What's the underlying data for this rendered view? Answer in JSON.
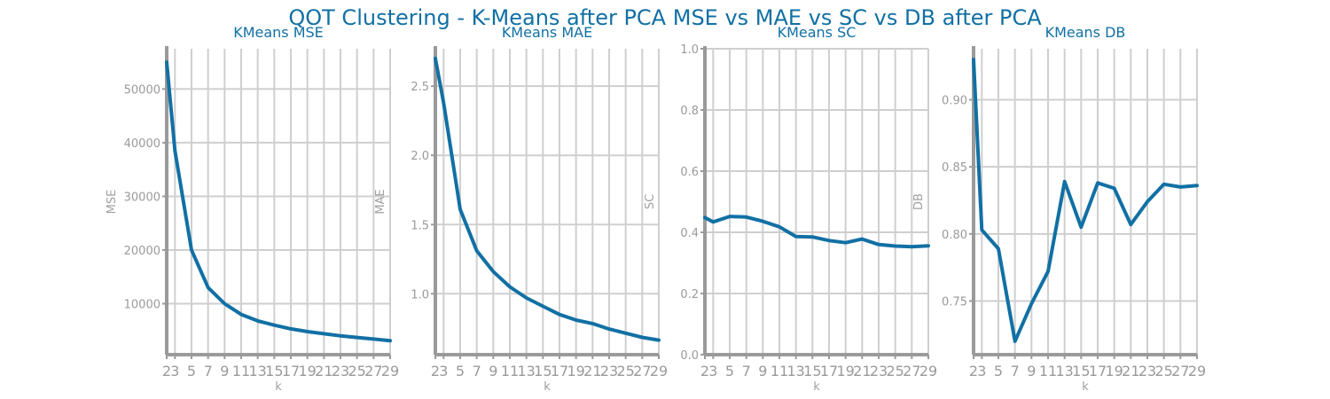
{
  "title": "QOT Clustering - K-Means after PCA MSE vs MAE vs SC vs DB after PCA",
  "colors": {
    "line": "#1170a4",
    "title": "#1170a4",
    "axis": "#9a9a9a",
    "grid": "#cfcfcf"
  },
  "chart_data": [
    {
      "type": "line",
      "title": "KMeans MSE",
      "xlabel": "k",
      "ylabel": "MSE",
      "x": [
        2,
        3,
        5,
        7,
        9,
        11,
        13,
        15,
        17,
        19,
        21,
        23,
        25,
        27,
        29
      ],
      "xticks": [
        2,
        3,
        5,
        7,
        9,
        11,
        13,
        15,
        17,
        19,
        21,
        23,
        25,
        27,
        29
      ],
      "yticks": [
        10000,
        20000,
        30000,
        40000,
        50000
      ],
      "xlim": [
        2,
        29
      ],
      "ylim": [
        500,
        57500
      ],
      "grid": true,
      "series": [
        {
          "values": [
            55000,
            38500,
            20000,
            13000,
            10000,
            8000,
            6800,
            6000,
            5300,
            4800,
            4400,
            4000,
            3700,
            3400,
            3100
          ]
        }
      ]
    },
    {
      "type": "line",
      "title": "KMeans MAE",
      "xlabel": "k",
      "ylabel": "MAE",
      "x": [
        2,
        3,
        5,
        7,
        9,
        11,
        13,
        15,
        17,
        19,
        21,
        23,
        25,
        27,
        29
      ],
      "xticks": [
        2,
        3,
        5,
        7,
        9,
        11,
        13,
        15,
        17,
        19,
        21,
        23,
        25,
        27,
        29
      ],
      "yticks": [
        1.0,
        1.5,
        2.0,
        2.5
      ],
      "xlim": [
        2,
        29
      ],
      "ylim": [
        0.56,
        2.77
      ],
      "grid": true,
      "series": [
        {
          "values": [
            2.7,
            2.38,
            1.61,
            1.31,
            1.16,
            1.05,
            0.97,
            0.91,
            0.85,
            0.81,
            0.785,
            0.745,
            0.715,
            0.685,
            0.665
          ]
        }
      ]
    },
    {
      "type": "line",
      "title": "KMeans SC",
      "xlabel": "k",
      "ylabel": "SC",
      "x": [
        2,
        3,
        5,
        7,
        9,
        11,
        13,
        15,
        17,
        19,
        21,
        23,
        25,
        27,
        29
      ],
      "xticks": [
        2,
        3,
        5,
        7,
        9,
        11,
        13,
        15,
        17,
        19,
        21,
        23,
        25,
        27,
        29
      ],
      "yticks": [
        0.0,
        0.2,
        0.4,
        0.6,
        0.8,
        1.0
      ],
      "xlim": [
        2,
        29
      ],
      "ylim": [
        0.0,
        1.0
      ],
      "grid": true,
      "series": [
        {
          "values": [
            0.448,
            0.434,
            0.452,
            0.45,
            0.436,
            0.418,
            0.386,
            0.385,
            0.373,
            0.366,
            0.378,
            0.36,
            0.355,
            0.353,
            0.356
          ]
        }
      ]
    },
    {
      "type": "line",
      "title": "KMeans DB",
      "xlabel": "k",
      "ylabel": "DB",
      "x": [
        2,
        3,
        5,
        7,
        9,
        11,
        13,
        15,
        17,
        19,
        21,
        23,
        25,
        27,
        29
      ],
      "xticks": [
        2,
        3,
        5,
        7,
        9,
        11,
        13,
        15,
        17,
        19,
        21,
        23,
        25,
        27,
        29
      ],
      "yticks": [
        0.75,
        0.8,
        0.85,
        0.9
      ],
      "xlim": [
        2,
        29
      ],
      "ylim": [
        0.71,
        0.938
      ],
      "grid": true,
      "series": [
        {
          "values": [
            0.93,
            0.803,
            0.789,
            0.72,
            0.748,
            0.772,
            0.839,
            0.805,
            0.838,
            0.834,
            0.807,
            0.824,
            0.837,
            0.835,
            0.836
          ]
        }
      ]
    }
  ]
}
